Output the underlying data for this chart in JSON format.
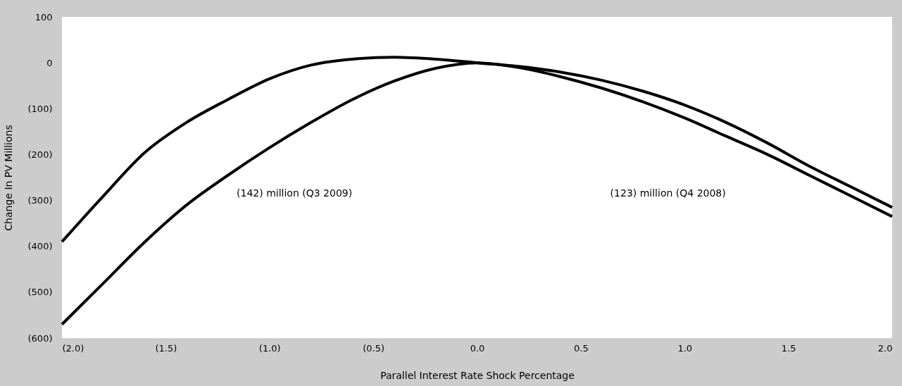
{
  "chart_data": {
    "type": "line",
    "xlabel": "Parallel Interest Rate Shock Percentage",
    "ylabel": "Change In PV Millions",
    "x": [
      -2.0,
      -1.8,
      -1.6,
      -1.4,
      -1.2,
      -1.0,
      -0.8,
      -0.6,
      -0.4,
      -0.2,
      0.0,
      0.2,
      0.4,
      0.6,
      0.8,
      1.0,
      1.2,
      1.4,
      1.6,
      1.8,
      2.0
    ],
    "series": [
      {
        "color": "#000000",
        "values": [
          -390,
          -290,
          -195,
          -130,
          -80,
          -35,
          -5,
          8,
          12,
          8,
          0,
          -8,
          -20,
          -38,
          -62,
          -92,
          -130,
          -175,
          -225,
          -270,
          -315
        ]
      },
      {
        "color": "#000000",
        "values": [
          -570,
          -480,
          -390,
          -310,
          -245,
          -185,
          -130,
          -80,
          -40,
          -12,
          0,
          -10,
          -30,
          -55,
          -85,
          -120,
          -160,
          -200,
          -245,
          -290,
          -335
        ]
      }
    ],
    "xlim": [
      -2.0,
      2.0
    ],
    "xticks": [
      {
        "value": -2.0,
        "label": "(2.0)"
      },
      {
        "value": -1.5,
        "label": "(1.5)"
      },
      {
        "value": -1.0,
        "label": "(1.0)"
      },
      {
        "value": -0.5,
        "label": "(0.5)"
      },
      {
        "value": 0,
        "label": "0.0"
      },
      {
        "value": 0.5,
        "label": "0.5"
      },
      {
        "value": 1.0,
        "label": "1.0"
      },
      {
        "value": 1.5,
        "label": "1.5"
      },
      {
        "value": 2.0,
        "label": "2.0"
      }
    ],
    "ylim": [
      -600,
      100
    ],
    "yticks": [
      100,
      0,
      {
        "value": -100,
        "label": "(100)"
      },
      {
        "value": -200,
        "label": "(200)"
      },
      {
        "value": -300,
        "label": "(300)"
      },
      {
        "value": -400,
        "label": "(400)"
      },
      {
        "value": -500,
        "label": "(500)"
      },
      {
        "value": -600,
        "label": "(600)"
      }
    ],
    "annotations": [
      "(142) million (Q3 2009)",
      "(123) million (Q4 2008)"
    ],
    "grid": false,
    "legend": false,
    "marker": "none",
    "line_style": "solid"
  }
}
